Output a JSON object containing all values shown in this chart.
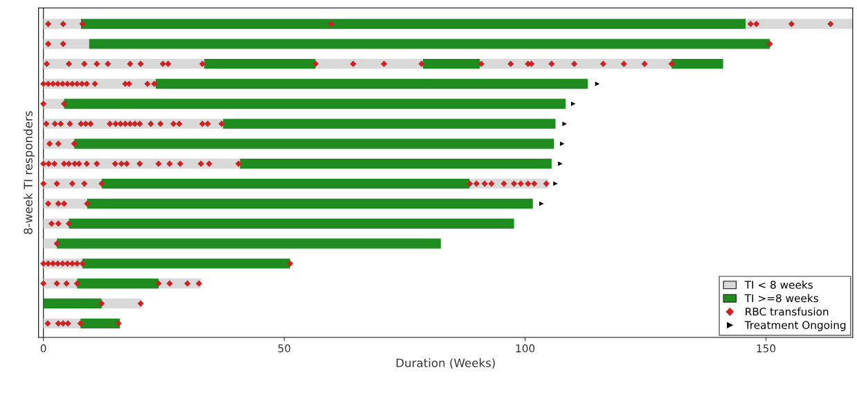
{
  "chart_data": {
    "type": "bar",
    "orientation": "horizontal",
    "stacked": true,
    "categories": [
      null,
      null,
      null,
      null,
      null,
      null,
      null,
      null,
      null,
      null,
      null,
      null,
      null,
      null,
      null,
      null
    ],
    "xlabel": "Duration (Weeks)",
    "ylabel": "8-week TI responders",
    "xlim": [
      -1,
      168
    ],
    "xticks": [
      0,
      50,
      100,
      150
    ],
    "grid": false,
    "ref_lines": [
      {
        "axis": "x",
        "value": 0,
        "color": "#333333"
      }
    ],
    "legend": "bottom right",
    "tick_labels": "x",
    "series": [
      {
        "name": "TI < 8 weeks",
        "color": "#d9d9d9",
        "values": [
          7.8,
          9.5,
          33.4,
          23.3,
          4.3,
          37.3,
          6.4,
          40.8,
          12.1,
          9.1,
          5.3,
          2.8,
          8.1,
          7,
          0,
          7.7
        ]
      },
      {
        "name": "TI >=8 weeks",
        "color": "#1e8c1e",
        "values": [
          138,
          141.3,
          23.1,
          89.7,
          104.1,
          69,
          99.6,
          64.7,
          76.4,
          92.5,
          92.4,
          79.7,
          43.1,
          16.9,
          12.1,
          8.2
        ]
      },
      {
        "color": "#d9d9d9",
        "values": [
          22.2,
          null,
          22.3,
          null,
          null,
          null,
          null,
          null,
          16.3,
          null,
          null,
          null,
          null,
          8.8,
          8.4,
          null
        ]
      },
      {
        "color": "#1e8c1e",
        "values": [
          null,
          null,
          11.8,
          null,
          null,
          null,
          null,
          null,
          null,
          null,
          null,
          null,
          null,
          null,
          null,
          null
        ]
      },
      {
        "color": "#d9d9d9",
        "values": [
          null,
          null,
          39.8,
          null,
          null,
          null,
          null,
          null,
          null,
          null,
          null,
          null,
          null,
          null,
          null,
          null
        ]
      },
      {
        "color": "#1e8c1e",
        "values": [
          null,
          null,
          10.7,
          null,
          null,
          null,
          null,
          null,
          null,
          null,
          null,
          null,
          null,
          null,
          null,
          null
        ]
      },
      {
        "type": "scatter",
        "name": "RBC transfusion",
        "color": "#cc2222",
        "marker": "diamond",
        "values": [
          1,
          1,
          0.7,
          0,
          0,
          0.6,
          1.3,
          0,
          0,
          1,
          1.7,
          2.8,
          0,
          0,
          12.1,
          0.9
        ]
      },
      {
        "type": "scatter",
        "color": "#cc2222",
        "marker": "diamond",
        "values": [
          4.1,
          4.1,
          5.3,
          1,
          4.3,
          2.4,
          3.1,
          1.1,
          2.8,
          3.1,
          3.1,
          null,
          1,
          2.8,
          20.2,
          3.1
        ]
      },
      {
        "type": "scatter",
        "color": "#cc2222",
        "marker": "diamond",
        "values": [
          8.1,
          150.8,
          8.5,
          2,
          null,
          3.6,
          6.4,
          2.3,
          6,
          4.3,
          5.3,
          null,
          2,
          4.8,
          null,
          4.1
        ]
      },
      {
        "type": "scatter",
        "color": "#cc2222",
        "marker": "diamond",
        "values": [
          59.7,
          null,
          11.1,
          3,
          null,
          5.5,
          null,
          4.3,
          8.5,
          9.1,
          null,
          null,
          3,
          7,
          null,
          5.1
        ]
      },
      {
        "type": "scatter",
        "color": "#cc2222",
        "marker": "diamond",
        "values": [
          146.8,
          null,
          13.4,
          4,
          null,
          7.8,
          null,
          5.3,
          12.1,
          null,
          null,
          null,
          4,
          23.9,
          null,
          7.7
        ]
      },
      {
        "type": "scatter",
        "color": "#cc2222",
        "marker": "diamond",
        "values": [
          148,
          null,
          18,
          5,
          null,
          8.8,
          null,
          6.5,
          88.5,
          null,
          null,
          null,
          5,
          26.2,
          null,
          15.6
        ]
      },
      {
        "type": "scatter",
        "color": "#cc2222",
        "marker": "diamond",
        "values": [
          155.3,
          null,
          20.2,
          6,
          null,
          9.8,
          null,
          7.4,
          89.9,
          null,
          null,
          null,
          6,
          29.9,
          null,
          null
        ]
      },
      {
        "type": "scatter",
        "color": "#cc2222",
        "marker": "diamond",
        "values": [
          163.4,
          null,
          24.8,
          7,
          null,
          13.8,
          null,
          9,
          91.6,
          null,
          null,
          null,
          7,
          32.3,
          null,
          null
        ]
      },
      {
        "type": "scatter",
        "color": "#cc2222",
        "marker": "diamond",
        "values": [
          null,
          null,
          25.9,
          8,
          null,
          15,
          null,
          11.1,
          93,
          null,
          null,
          null,
          8.1,
          null,
          null,
          null
        ]
      },
      {
        "type": "scatter",
        "color": "#cc2222",
        "marker": "diamond",
        "values": [
          null,
          null,
          33,
          9,
          null,
          16,
          null,
          14.9,
          95.6,
          null,
          null,
          null,
          51.2,
          null,
          null,
          null
        ]
      },
      {
        "type": "scatter",
        "color": "#cc2222",
        "marker": "diamond",
        "values": [
          null,
          null,
          56.5,
          10.7,
          null,
          17,
          null,
          16.2,
          97.7,
          null,
          null,
          null,
          null,
          null,
          null,
          null
        ]
      },
      {
        "type": "scatter",
        "color": "#cc2222",
        "marker": "diamond",
        "values": [
          null,
          null,
          64.3,
          17,
          null,
          18,
          null,
          17.3,
          99.1,
          null,
          null,
          null,
          null,
          null,
          null,
          null
        ]
      },
      {
        "type": "scatter",
        "color": "#cc2222",
        "marker": "diamond",
        "values": [
          null,
          null,
          70.7,
          17.8,
          null,
          19,
          null,
          20,
          100.6,
          null,
          null,
          null,
          null,
          null,
          null,
          null
        ]
      },
      {
        "type": "scatter",
        "color": "#cc2222",
        "marker": "diamond",
        "values": [
          null,
          null,
          78.5,
          21.6,
          null,
          20,
          null,
          23.9,
          101.9,
          null,
          null,
          null,
          null,
          null,
          null,
          null
        ]
      },
      {
        "type": "scatter",
        "color": "#cc2222",
        "marker": "diamond",
        "values": [
          null,
          null,
          90.9,
          23,
          null,
          22.3,
          null,
          26.2,
          104.4,
          null,
          null,
          null,
          null,
          null,
          null,
          null
        ]
      },
      {
        "type": "scatter",
        "color": "#cc2222",
        "marker": "diamond",
        "values": [
          null,
          null,
          97,
          null,
          null,
          24.3,
          null,
          28.4,
          null,
          null,
          null,
          null,
          null,
          null,
          null,
          null
        ]
      },
      {
        "type": "scatter",
        "color": "#cc2222",
        "marker": "diamond",
        "values": [
          null,
          null,
          100.6,
          null,
          null,
          27,
          null,
          32.7,
          null,
          null,
          null,
          null,
          null,
          null,
          null,
          null
        ]
      },
      {
        "type": "scatter",
        "color": "#cc2222",
        "marker": "diamond",
        "values": [
          null,
          null,
          101.3,
          null,
          null,
          28.2,
          null,
          34.4,
          null,
          null,
          null,
          null,
          null,
          null,
          null,
          null
        ]
      },
      {
        "type": "scatter",
        "color": "#cc2222",
        "marker": "diamond",
        "values": [
          null,
          null,
          105.5,
          null,
          null,
          33,
          null,
          40.5,
          null,
          null,
          null,
          null,
          null,
          null,
          null,
          null
        ]
      },
      {
        "type": "scatter",
        "color": "#cc2222",
        "marker": "diamond",
        "values": [
          null,
          null,
          110.2,
          null,
          null,
          34.1,
          null,
          null,
          null,
          null,
          null,
          null,
          null,
          null,
          null,
          null
        ]
      },
      {
        "type": "scatter",
        "color": "#cc2222",
        "marker": "diamond",
        "values": [
          null,
          null,
          116.2,
          null,
          null,
          37,
          null,
          null,
          null,
          null,
          null,
          null,
          null,
          null,
          null,
          null
        ]
      },
      {
        "type": "scatter",
        "color": "#cc2222",
        "marker": "diamond",
        "values": [
          null,
          null,
          120.5,
          null,
          null,
          null,
          null,
          null,
          null,
          null,
          null,
          null,
          null,
          null,
          null,
          null
        ]
      },
      {
        "type": "scatter",
        "color": "#cc2222",
        "marker": "diamond",
        "values": [
          null,
          null,
          124.8,
          null,
          null,
          null,
          null,
          null,
          null,
          null,
          null,
          null,
          null,
          null,
          null,
          null
        ]
      },
      {
        "type": "scatter",
        "color": "#cc2222",
        "marker": "diamond",
        "values": [
          null,
          null,
          130.4,
          null,
          null,
          null,
          null,
          null,
          null,
          null,
          null,
          null,
          null,
          null,
          null,
          null
        ]
      },
      {
        "type": "scatter",
        "name": "Treatment Ongoing",
        "color": "#000000",
        "marker": "triangle",
        "values": [
          null,
          null,
          null,
          115,
          110,
          108.2,
          107.7,
          107.3,
          106.3,
          103.4,
          null,
          null,
          null,
          null,
          null,
          null
        ]
      }
    ]
  }
}
